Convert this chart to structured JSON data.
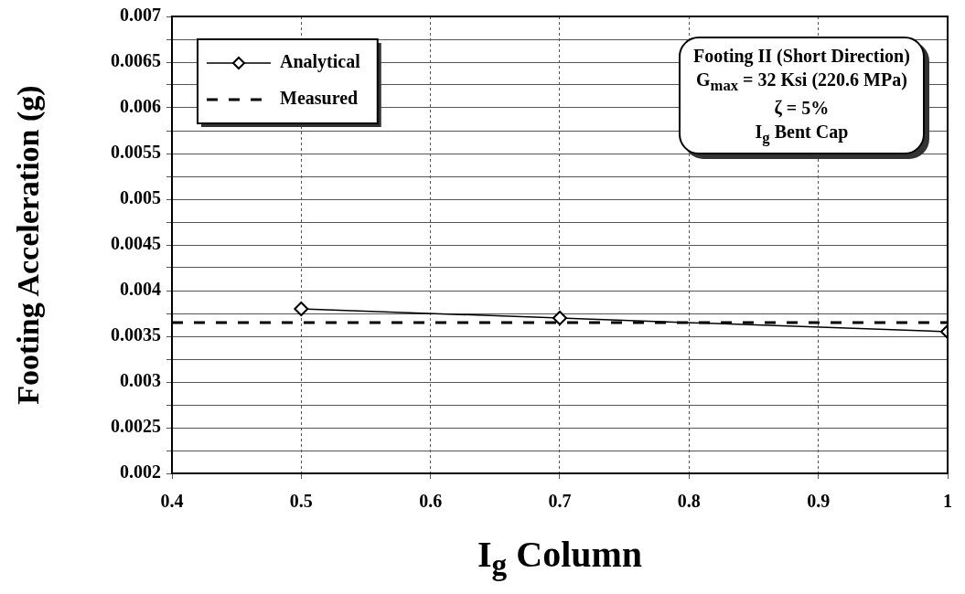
{
  "chart_data": {
    "type": "line",
    "xlabel": "I$_{g}$ Column",
    "ylabel": "Footing Acceleration (g)",
    "x": [
      0.5,
      0.7,
      1
    ],
    "series": [
      {
        "name": "Analytical",
        "color": "#000000",
        "values": [
          0.0038,
          0.0037,
          0.00355
        ],
        "marker": "diamond",
        "line_style": "solid"
      },
      {
        "name": "Measured",
        "color": "#000000",
        "x": [
          0.4,
          1
        ],
        "values": [
          0.00365,
          0.00365
        ],
        "marker": "none",
        "line_style": "dashed"
      }
    ],
    "xlim": [
      0.4,
      1
    ],
    "xticks": [
      0.4,
      0.5,
      0.6,
      0.7,
      0.8,
      0.9,
      1
    ],
    "ylim": [
      0.002,
      0.007
    ],
    "yticks": [
      0.002,
      {
        "value": 0.00225,
        "label": null
      },
      0.0025,
      {
        "value": 0.00275,
        "label": null
      },
      0.003,
      {
        "value": 0.00325,
        "label": null
      },
      0.0035,
      {
        "value": 0.00375,
        "label": null
      },
      0.004,
      {
        "value": 0.00425,
        "label": null
      },
      0.0045,
      {
        "value": 0.00475,
        "label": null
      },
      0.005,
      {
        "value": 0.00525,
        "label": null
      },
      0.0055,
      {
        "value": 0.00575,
        "label": null
      },
      0.006,
      {
        "value": 0.00625,
        "label": null
      },
      0.0065,
      {
        "value": 0.00675,
        "label": null
      },
      0.007
    ],
    "grid": true,
    "legend": "top left",
    "annotations": [
      "Footing II (Short Direction)",
      "G$_{max}$ = 32 Ksi (220.6 MPa)",
      "ζ = 5%",
      "I$_{g}$ Bent Cap"
    ]
  }
}
